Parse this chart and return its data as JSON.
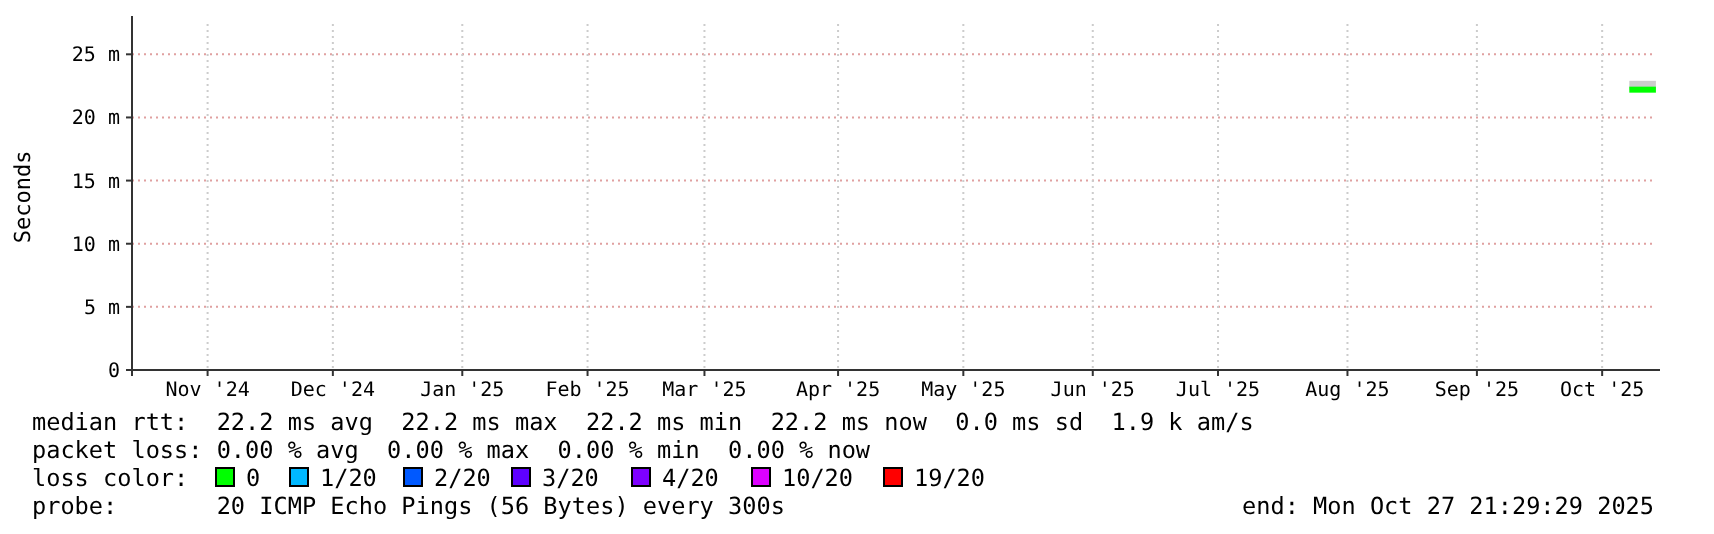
{
  "chart_data": {
    "type": "line",
    "ylabel": "Seconds",
    "x": [
      "2025-10-21T12:00",
      "2025-10-23T12:00",
      "2025-10-25T12:00",
      "2025-10-27T21:00"
    ],
    "xlim": [
      "2024-10-27T21:29",
      "2025-10-27T21:29"
    ],
    "xticks": [
      {
        "value": "2024-11-15",
        "label": "Nov '24"
      },
      {
        "value": "2024-12-15",
        "label": "Dec '24"
      },
      {
        "value": "2025-01-15",
        "label": "Jan '25"
      },
      {
        "value": "2025-02-14",
        "label": "Feb '25"
      },
      {
        "value": "2025-03-14",
        "label": "Mar '25"
      },
      {
        "value": "2025-04-15",
        "label": "Apr '25"
      },
      {
        "value": "2025-05-15",
        "label": "May '25"
      },
      {
        "value": "2025-06-15",
        "label": "Jun '25"
      },
      {
        "value": "2025-07-15",
        "label": "Jul '25"
      },
      {
        "value": "2025-08-15",
        "label": "Aug '25"
      },
      {
        "value": "2025-09-15",
        "label": "Sep '25"
      },
      {
        "value": "2025-10-15",
        "label": "Oct '25"
      }
    ],
    "ylim": [
      0,
      27.4
    ],
    "yticks": [
      0,
      {
        "value": 5,
        "label": "5 m"
      },
      {
        "value": 10,
        "label": "10 m"
      },
      {
        "value": 15,
        "label": "15 m"
      },
      {
        "value": 20,
        "label": "20 m"
      },
      {
        "value": 25,
        "label": "25 m"
      }
    ],
    "grid": true,
    "legend": "bottom",
    "marker": "none",
    "line_style": "solid",
    "series": [
      {
        "name": "0",
        "color": "#00ff00",
        "values": [
          22.2,
          22.2,
          22.2,
          22.2
        ],
        "lower": [
          22.2,
          22.2,
          22.2,
          22.2
        ],
        "upper": [
          22.9,
          22.9,
          22.9,
          22.9
        ]
      },
      {
        "name": "1/20",
        "color": "#00b8ff",
        "values": [
          null,
          null,
          null,
          null
        ]
      },
      {
        "name": "2/20",
        "color": "#0059ff",
        "values": [
          null,
          null,
          null,
          null
        ]
      },
      {
        "name": "3/20",
        "color": "#5e00ff",
        "values": [
          null,
          null,
          null,
          null
        ]
      },
      {
        "name": "4/20",
        "color": "#7e00ff",
        "values": [
          null,
          null,
          null,
          null
        ]
      },
      {
        "name": "10/20",
        "color": "#dd00ff",
        "values": [
          null,
          null,
          null,
          null
        ]
      },
      {
        "name": "19/20",
        "color": "#ff0000",
        "values": [
          null,
          null,
          null,
          null
        ]
      }
    ],
    "annotations": [
      "median rtt:  22.2 ms avg  22.2 ms max  22.2 ms min  22.2 ms now  0.0 ms sd  1.9 k am/s",
      "packet loss: 0.00 % avg  0.00 % max  0.00 % min  0.00 % now",
      "loss color:",
      "probe:       20 ICMP Echo Pings (56 Bytes) every 300s",
      "end: Mon Oct 27 21:29:29 2025"
    ]
  }
}
